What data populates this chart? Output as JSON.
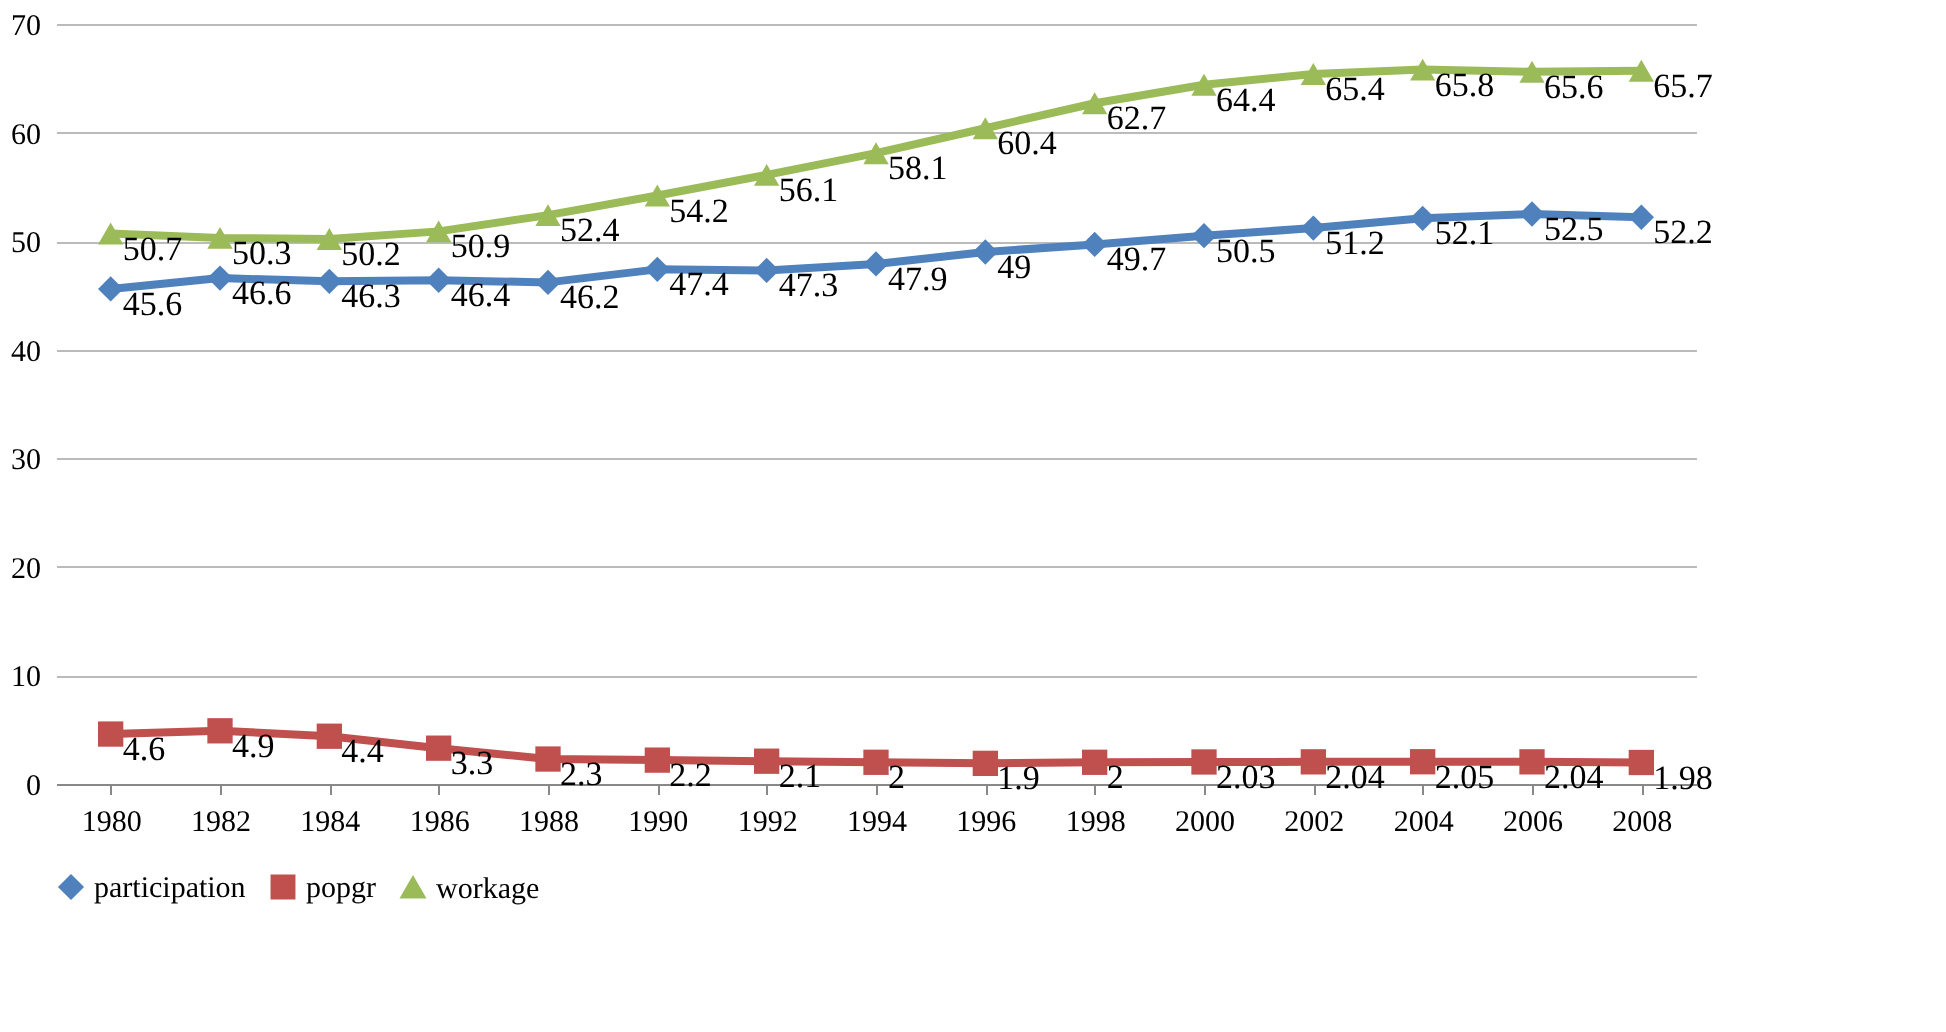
{
  "chart_data": {
    "type": "line",
    "categories": [
      "1980",
      "1982",
      "1984",
      "1986",
      "1988",
      "1990",
      "1992",
      "1994",
      "1996",
      "1998",
      "2000",
      "2002",
      "2004",
      "2006",
      "2008"
    ],
    "series": [
      {
        "name": "participation",
        "color": "#4f81bd",
        "marker": "diamond",
        "values": [
          45.6,
          46.6,
          46.3,
          46.4,
          46.2,
          47.4,
          47.3,
          47.9,
          49,
          49.7,
          50.5,
          51.2,
          52.1,
          52.5,
          52.2
        ]
      },
      {
        "name": "popgr",
        "color": "#c0504d",
        "marker": "square",
        "values": [
          4.6,
          4.9,
          4.4,
          3.3,
          2.3,
          2.2,
          2.1,
          2,
          1.9,
          2,
          2.03,
          2.04,
          2.05,
          2.04,
          1.98
        ]
      },
      {
        "name": "workage",
        "color": "#9bbb59",
        "marker": "triangle",
        "values": [
          50.7,
          50.3,
          50.2,
          50.9,
          52.4,
          54.2,
          56.1,
          58.1,
          60.4,
          62.7,
          64.4,
          65.4,
          65.8,
          65.6,
          65.7
        ]
      }
    ],
    "ylim": [
      0,
      70
    ],
    "yticks": [
      0,
      10,
      20,
      30,
      40,
      50,
      60,
      70
    ],
    "grid": "y",
    "legend": "bottom",
    "data_labels": true,
    "line_style": "solid"
  }
}
